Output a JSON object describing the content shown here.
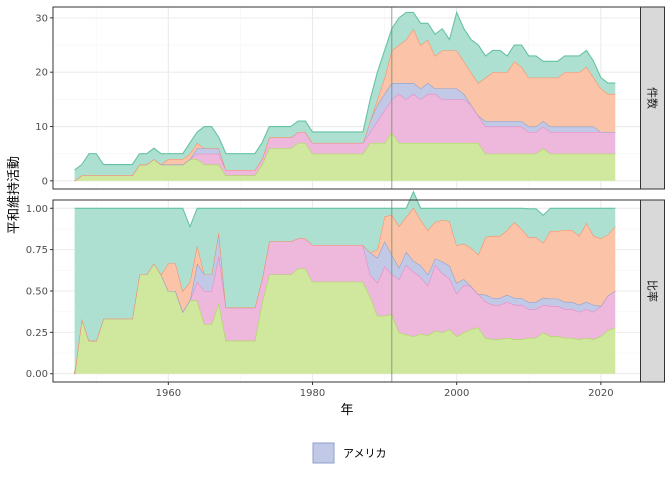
{
  "chart_data": {
    "type": "area",
    "xlabel": "年",
    "ylabel": "平和維持活動",
    "x_ticks": [
      1960,
      1980,
      2000,
      2020
    ],
    "xlim": [
      1944,
      2025.5
    ],
    "x": [
      1947,
      1948,
      1949,
      1950,
      1951,
      1952,
      1953,
      1954,
      1955,
      1956,
      1957,
      1958,
      1959,
      1960,
      1961,
      1962,
      1963,
      1964,
      1965,
      1966,
      1967,
      1968,
      1969,
      1970,
      1971,
      1972,
      1973,
      1974,
      1975,
      1976,
      1977,
      1978,
      1979,
      1980,
      1981,
      1982,
      1983,
      1984,
      1985,
      1986,
      1987,
      1988,
      1989,
      1990,
      1991,
      1992,
      1993,
      1994,
      1995,
      1996,
      1997,
      1998,
      1999,
      2000,
      2001,
      2002,
      2003,
      2004,
      2005,
      2006,
      2007,
      2008,
      2009,
      2010,
      2011,
      2012,
      2013,
      2014,
      2015,
      2016,
      2017,
      2018,
      2019,
      2020,
      2021,
      2022
    ],
    "vline_x": 1991,
    "colors": {
      "green": "#cfe89d",
      "green_line": "#a6d854",
      "pink": "#eeb7dc",
      "pink_line": "#e78ac3",
      "blue": "#c2c9e6",
      "blue_line": "#8da0cb",
      "orange": "#fbc3a8",
      "orange_line": "#fc8d62",
      "teal": "#aee0d2",
      "teal_line": "#66c2a5",
      "strip_bg": "#d9d9d9",
      "grid_major": "#ebebeb",
      "grid_minor": "#f5f5f5",
      "panel_border": "#333333",
      "vline": "#6e8e6e"
    },
    "panels": [
      {
        "strip": "件数",
        "ylim": [
          -1.5,
          32
        ],
        "y_ticks": [
          0,
          10,
          20,
          30
        ],
        "y_tick_labels": [
          "0",
          "10",
          "20",
          "30"
        ],
        "series": [
          {
            "color": "green",
            "values": [
              0,
              1,
              1,
              1,
              1,
              1,
              1,
              1,
              1,
              3,
              3,
              4,
              3,
              3,
              3,
              3,
              4,
              4,
              3,
              3,
              3,
              1,
              1,
              1,
              1,
              1,
              3,
              6,
              6,
              6,
              6,
              7,
              7,
              5,
              5,
              5,
              5,
              5,
              5,
              5,
              5,
              7,
              7,
              7,
              9,
              7,
              7,
              7,
              7,
              7,
              7,
              7,
              7,
              7,
              7,
              7,
              7,
              5,
              5,
              5,
              5,
              5,
              5,
              5,
              5,
              6,
              5,
              5,
              5,
              5,
              5,
              5,
              5,
              5,
              5,
              5
            ]
          },
          {
            "color": "pink",
            "values": [
              0,
              0,
              0,
              0,
              0,
              0,
              0,
              0,
              0,
              0,
              0,
              0,
              0,
              0,
              0,
              0,
              0,
              1,
              2,
              2,
              2,
              1,
              1,
              1,
              1,
              1,
              1,
              2,
              2,
              2,
              2,
              2,
              2,
              2,
              2,
              2,
              2,
              2,
              2,
              2,
              2,
              2,
              4,
              6,
              6,
              9,
              8,
              9,
              8,
              9,
              9,
              8,
              8,
              8,
              8,
              7,
              5,
              5,
              5,
              5,
              5,
              5,
              5,
              4,
              4,
              4,
              4,
              4,
              4,
              4,
              4,
              4,
              4,
              4,
              4,
              4
            ]
          },
          {
            "color": "blue",
            "values": [
              0,
              0,
              0,
              0,
              0,
              0,
              0,
              0,
              0,
              0,
              0,
              0,
              0,
              0,
              0,
              0,
              0,
              1,
              1,
              1,
              1,
              0,
              0,
              0,
              0,
              0,
              0,
              0,
              0,
              0,
              0,
              0,
              0,
              0,
              0,
              0,
              0,
              0,
              0,
              0,
              0,
              2,
              3,
              3,
              3,
              2,
              3,
              2,
              2,
              2,
              1,
              2,
              2,
              2,
              1,
              0,
              0,
              1,
              1,
              1,
              1,
              1,
              1,
              1,
              1,
              1,
              1,
              1,
              1,
              1,
              1,
              1,
              1,
              0,
              0,
              0
            ]
          },
          {
            "color": "orange",
            "values": [
              0,
              0,
              0,
              0,
              0,
              0,
              0,
              0,
              0,
              0,
              0,
              0,
              0,
              1,
              1,
              1,
              1,
              1,
              0,
              0,
              0,
              0,
              0,
              0,
              0,
              0,
              0,
              0,
              0,
              0,
              0,
              0,
              0,
              0,
              0,
              0,
              0,
              0,
              0,
              0,
              0,
              0,
              1,
              3,
              6,
              7,
              8,
              10,
              8,
              8,
              6,
              7,
              7,
              7,
              6,
              6,
              6,
              8,
              9,
              9,
              9,
              11,
              10,
              9,
              9,
              8,
              9,
              9,
              10,
              10,
              10,
              11,
              9,
              8,
              7,
              7
            ]
          },
          {
            "color": "teal",
            "values": [
              2,
              2,
              4,
              4,
              2,
              2,
              2,
              2,
              2,
              2,
              2,
              2,
              2,
              1,
              1,
              1,
              2,
              2,
              4,
              4,
              2,
              3,
              3,
              3,
              3,
              3,
              3,
              2,
              2,
              2,
              2,
              2,
              2,
              2,
              2,
              2,
              2,
              2,
              2,
              2,
              2,
              4,
              5,
              5,
              4,
              5,
              5,
              3,
              4,
              3,
              4,
              4,
              2,
              7,
              6,
              6,
              7,
              4,
              4,
              4,
              3,
              3,
              4,
              4,
              4,
              3,
              3,
              3,
              3,
              3,
              3,
              3,
              3,
              2,
              2,
              2
            ]
          }
        ]
      },
      {
        "strip": "比率",
        "ylim": [
          -0.05,
          1.05
        ],
        "y_ticks": [
          0,
          0.25,
          0.5,
          0.75,
          1
        ],
        "y_tick_labels": [
          "0.00",
          "0.25",
          "0.50",
          "0.75",
          "1.00"
        ],
        "series": [
          {
            "color": "green",
            "values": [
              0,
              0.333,
              0.2,
              0.2,
              0.333,
              0.333,
              0.333,
              0.333,
              0.333,
              0.6,
              0.6,
              0.667,
              0.6,
              0.5,
              0.5,
              0.375,
              0.444,
              0.444,
              0.3,
              0.3,
              0.429,
              0.2,
              0.2,
              0.2,
              0.2,
              0.2,
              0.429,
              0.6,
              0.6,
              0.6,
              0.6,
              0.636,
              0.636,
              0.556,
              0.556,
              0.556,
              0.556,
              0.556,
              0.556,
              0.556,
              0.556,
              0.467,
              0.35,
              0.35,
              0.36,
              0.25,
              0.237,
              0.226,
              0.241,
              0.233,
              0.259,
              0.25,
              0.269,
              0.226,
              0.25,
              0.269,
              0.28,
              0.217,
              0.208,
              0.208,
              0.217,
              0.208,
              0.208,
              0.217,
              0.217,
              0.25,
              0.227,
              0.227,
              0.217,
              0.217,
              0.208,
              0.217,
              0.208,
              0.227,
              0.263,
              0.278
            ]
          },
          {
            "color": "pink",
            "values": [
              0,
              0,
              0,
              0,
              0,
              0,
              0,
              0,
              0,
              0,
              0,
              0,
              0,
              0,
              0,
              0,
              0,
              0.111,
              0.2,
              0.2,
              0.286,
              0.2,
              0.2,
              0.2,
              0.2,
              0.2,
              0.143,
              0.2,
              0.2,
              0.2,
              0.2,
              0.182,
              0.182,
              0.222,
              0.222,
              0.222,
              0.222,
              0.222,
              0.222,
              0.222,
              0.222,
              0.133,
              0.2,
              0.3,
              0.24,
              0.321,
              0.421,
              0.39,
              0.345,
              0.3,
              0.4,
              0.357,
              0.308,
              0.258,
              0.286,
              0.26,
              0.2,
              0.218,
              0.208,
              0.208,
              0.217,
              0.208,
              0.208,
              0.173,
              0.174,
              0.167,
              0.182,
              0.182,
              0.174,
              0.174,
              0.166,
              0.174,
              0.166,
              0.182,
              0.21,
              0.222
            ]
          },
          {
            "color": "blue",
            "values": [
              0,
              0,
              0,
              0,
              0,
              0,
              0,
              0,
              0,
              0,
              0,
              0,
              0,
              0,
              0,
              0,
              0,
              0.111,
              0.1,
              0.1,
              0.143,
              0,
              0,
              0,
              0,
              0,
              0,
              0,
              0,
              0,
              0,
              0,
              0,
              0,
              0,
              0,
              0,
              0,
              0,
              0,
              0,
              0.133,
              0.15,
              0.15,
              0.12,
              0.071,
              0.079,
              0.065,
              0.069,
              0.067,
              0.037,
              0.071,
              0.077,
              0.065,
              0.036,
              0,
              0,
              0.043,
              0.042,
              0.042,
              0.043,
              0.042,
              0.042,
              0.043,
              0.043,
              0.042,
              0.045,
              0.045,
              0.043,
              0.043,
              0.042,
              0.043,
              0.042,
              0,
              0,
              0
            ]
          },
          {
            "color": "orange",
            "values": [
              0,
              0,
              0,
              0,
              0,
              0,
              0,
              0,
              0,
              0,
              0,
              0,
              0,
              0.167,
              0.167,
              0.125,
              0.111,
              0.111,
              0,
              0,
              0,
              0,
              0,
              0,
              0,
              0,
              0,
              0,
              0,
              0,
              0,
              0,
              0,
              0,
              0,
              0,
              0,
              0,
              0,
              0,
              0,
              0,
              0.05,
              0.15,
              0.24,
              0.25,
              0.21,
              0.323,
              0.276,
              0.267,
              0.222,
              0.25,
              0.269,
              0.226,
              0.214,
              0.231,
              0.24,
              0.348,
              0.375,
              0.375,
              0.391,
              0.458,
              0.417,
              0.391,
              0.391,
              0.333,
              0.409,
              0.409,
              0.435,
              0.435,
              0.417,
              0.478,
              0.417,
              0.409,
              0.368,
              0.389
            ]
          },
          {
            "color": "teal",
            "values": [
              1,
              0.667,
              0.8,
              0.8,
              0.667,
              0.667,
              0.667,
              0.667,
              0.667,
              0.4,
              0.4,
              0.333,
              0.4,
              0.333,
              0.333,
              0.5,
              0.334,
              0.223,
              0.4,
              0.4,
              0.142,
              0.6,
              0.6,
              0.6,
              0.6,
              0.6,
              0.428,
              0.2,
              0.2,
              0.2,
              0.2,
              0.182,
              0.182,
              0.222,
              0.222,
              0.222,
              0.222,
              0.222,
              0.222,
              0.222,
              0.222,
              0.267,
              0.25,
              0.05,
              0.04,
              0.108,
              0.053,
              0.096,
              0.069,
              0.133,
              0.082,
              0.072,
              0.077,
              0.225,
              0.214,
              0.24,
              0.28,
              0.174,
              0.167,
              0.167,
              0.132,
              0.084,
              0.125,
              0.173,
              0.172,
              0.166,
              0.137,
              0.137,
              0.131,
              0.131,
              0.167,
              0.088,
              0.167,
              0.182,
              0.159,
              0.111
            ]
          }
        ]
      }
    ],
    "legend": {
      "position": "bottom",
      "items": [
        {
          "label": "アメリカ",
          "color": "blue"
        }
      ]
    }
  }
}
